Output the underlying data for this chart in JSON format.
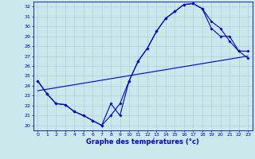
{
  "xlabel": "Graphe des températures (°c)",
  "xlim_min": -0.5,
  "xlim_max": 23.5,
  "ylim_min": 19.5,
  "ylim_max": 32.5,
  "yticks": [
    20,
    21,
    22,
    23,
    24,
    25,
    26,
    27,
    28,
    29,
    30,
    31,
    32
  ],
  "xticks": [
    0,
    1,
    2,
    3,
    4,
    5,
    6,
    7,
    8,
    9,
    10,
    11,
    12,
    13,
    14,
    15,
    16,
    17,
    18,
    19,
    20,
    21,
    22,
    23
  ],
  "line_color": "#0000cc",
  "bg_color": "#cce8ec",
  "grid_color": "#aad0d8",
  "line1_x": [
    0,
    1,
    2,
    3,
    4,
    5,
    6,
    7,
    8,
    9,
    10,
    11,
    12,
    13,
    14,
    15,
    16,
    17,
    18,
    19,
    20,
    21,
    22,
    23
  ],
  "line1_y": [
    24.5,
    23.2,
    22.2,
    22.1,
    21.4,
    21.0,
    20.5,
    20.0,
    22.2,
    21.0,
    24.5,
    26.5,
    27.8,
    29.5,
    30.8,
    31.5,
    32.2,
    32.3,
    31.8,
    29.8,
    29.0,
    29.0,
    27.5,
    27.5
  ],
  "line2_x": [
    0,
    1,
    2,
    3,
    4,
    5,
    6,
    7,
    8,
    9,
    10,
    11,
    12,
    13,
    14,
    15,
    16,
    17,
    18,
    19,
    20,
    21,
    22,
    23
  ],
  "line2_y": [
    24.5,
    23.2,
    22.2,
    22.1,
    21.4,
    21.0,
    20.5,
    20.0,
    21.0,
    22.2,
    24.5,
    26.5,
    27.8,
    29.5,
    30.8,
    31.5,
    32.2,
    32.3,
    31.8,
    30.5,
    29.8,
    28.5,
    27.5,
    26.8
  ],
  "line3_x": [
    0,
    23
  ],
  "line3_y": [
    23.5,
    27.0
  ]
}
